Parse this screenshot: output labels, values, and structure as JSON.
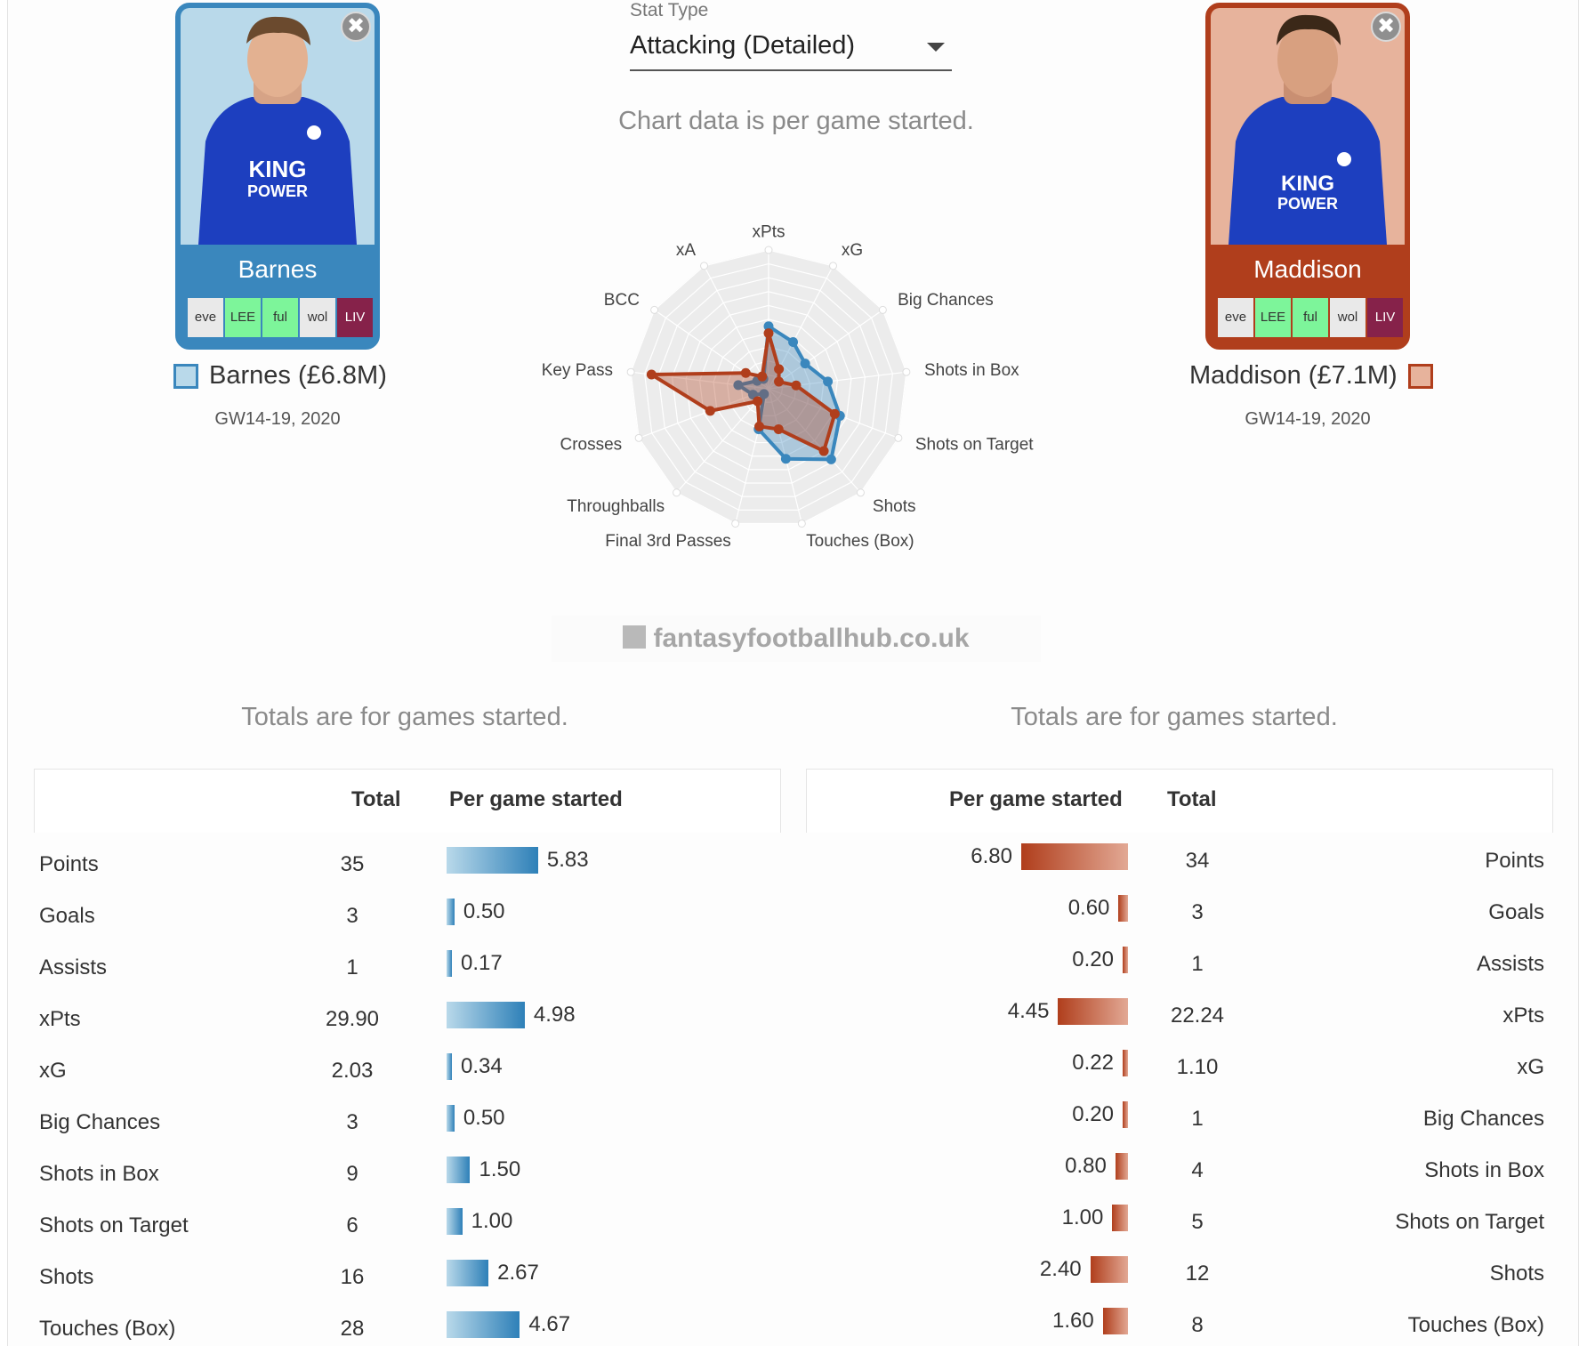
{
  "left_player": {
    "card_name": "Barnes",
    "title": "Barnes (£6.8M)",
    "period": "GW14-19, 2020",
    "fixtures": [
      {
        "label": "eve",
        "difficulty": "neutral"
      },
      {
        "label": "LEE",
        "difficulty": "easy"
      },
      {
        "label": "ful",
        "difficulty": "easy"
      },
      {
        "label": "wol",
        "difficulty": "neutral"
      },
      {
        "label": "LIV",
        "difficulty": "hard"
      }
    ],
    "shirt_text": [
      "KING",
      "POWER"
    ],
    "color": "#3a87bd",
    "fill": "#b9d9ea"
  },
  "right_player": {
    "card_name": "Maddison",
    "title": "Maddison (£7.1M)",
    "period": "GW14-19, 2020",
    "fixtures": [
      {
        "label": "eve",
        "difficulty": "neutral"
      },
      {
        "label": "LEE",
        "difficulty": "easy"
      },
      {
        "label": "ful",
        "difficulty": "easy"
      },
      {
        "label": "wol",
        "difficulty": "neutral"
      },
      {
        "label": "LIV",
        "difficulty": "hard"
      }
    ],
    "shirt_text": [
      "KING",
      "POWER"
    ],
    "color": "#b03e1c",
    "fill": "#e7b39c"
  },
  "close_symbol": "✖",
  "stat_type": {
    "label": "Stat Type",
    "value": "Attacking (Detailed)"
  },
  "chart_note": "Chart data is per game started.",
  "watermark": "fantasyfootballhub.co.uk",
  "chart_data": {
    "type": "radar",
    "axes": [
      "xPts",
      "xG",
      "Big Chances",
      "Shots in Box",
      "Shots on Target",
      "Shots",
      "Touches (Box)",
      "Final 3rd Passes",
      "Throughballs",
      "Crosses",
      "Key Pass",
      "BCC",
      "xA"
    ],
    "range": [
      0,
      1
    ],
    "series": [
      {
        "name": "Barnes (£6.8M)",
        "color": "#3a87bd",
        "values": [
          0.45,
          0.38,
          0.32,
          0.43,
          0.55,
          0.68,
          0.52,
          0.3,
          0.05,
          0.12,
          0.22,
          0.1,
          0.08
        ]
      },
      {
        "name": "Maddison (£7.1M)",
        "color": "#b03e1c",
        "values": [
          0.4,
          0.16,
          0.09,
          0.2,
          0.51,
          0.6,
          0.3,
          0.28,
          0.12,
          0.45,
          0.85,
          0.2,
          0.1
        ]
      }
    ]
  },
  "totals_note_left": "Totals are for games started.",
  "totals_note_right": "Totals are for games started.",
  "left_table": {
    "headers": {
      "total": "Total",
      "per_game": "Per game started"
    },
    "max": 6.8,
    "rows": [
      {
        "label": "Points",
        "total": "35",
        "per_game": "5.83",
        "value": 5.83
      },
      {
        "label": "Goals",
        "total": "3",
        "per_game": "0.50",
        "value": 0.5
      },
      {
        "label": "Assists",
        "total": "1",
        "per_game": "0.17",
        "value": 0.17
      },
      {
        "label": "xPts",
        "total": "29.90",
        "per_game": "4.98",
        "value": 4.98
      },
      {
        "label": "xG",
        "total": "2.03",
        "per_game": "0.34",
        "value": 0.34
      },
      {
        "label": "Big Chances",
        "total": "3",
        "per_game": "0.50",
        "value": 0.5
      },
      {
        "label": "Shots in Box",
        "total": "9",
        "per_game": "1.50",
        "value": 1.5
      },
      {
        "label": "Shots on Target",
        "total": "6",
        "per_game": "1.00",
        "value": 1.0
      },
      {
        "label": "Shots",
        "total": "16",
        "per_game": "2.67",
        "value": 2.67
      },
      {
        "label": "Touches (Box)",
        "total": "28",
        "per_game": "4.67",
        "value": 4.67
      }
    ]
  },
  "right_table": {
    "headers": {
      "total": "Total",
      "per_game": "Per game started"
    },
    "rows": [
      {
        "label": "Points",
        "total": "34",
        "per_game": "6.80",
        "value": 6.8
      },
      {
        "label": "Goals",
        "total": "3",
        "per_game": "0.60",
        "value": 0.6
      },
      {
        "label": "Assists",
        "total": "1",
        "per_game": "0.20",
        "value": 0.2
      },
      {
        "label": "xPts",
        "total": "22.24",
        "per_game": "4.45",
        "value": 4.45
      },
      {
        "label": "xG",
        "total": "1.10",
        "per_game": "0.22",
        "value": 0.22
      },
      {
        "label": "Big Chances",
        "total": "1",
        "per_game": "0.20",
        "value": 0.2
      },
      {
        "label": "Shots in Box",
        "total": "4",
        "per_game": "0.80",
        "value": 0.8
      },
      {
        "label": "Shots on Target",
        "total": "5",
        "per_game": "1.00",
        "value": 1.0
      },
      {
        "label": "Shots",
        "total": "12",
        "per_game": "2.40",
        "value": 2.4
      },
      {
        "label": "Touches (Box)",
        "total": "8",
        "per_game": "1.60",
        "value": 1.6
      }
    ]
  }
}
